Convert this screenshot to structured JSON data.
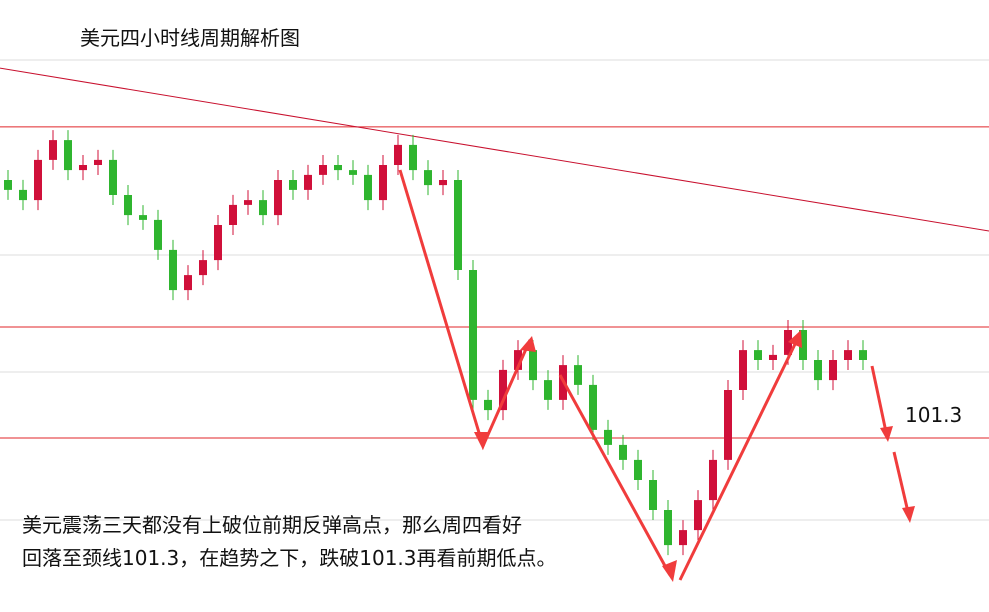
{
  "chart_data": {
    "type": "candlestick",
    "title": "美元四小时线周期解析图",
    "annotation_lines": [
      "美元震荡三天都没有上破位前期反弹高点，那么周四看好",
      "回落至颈线101.3，在趋势之下，跌破101.3再看前期低点。"
    ],
    "ylim": [
      100.72,
      102.76
    ],
    "open": 102.16,
    "close": [
      102.127,
      102.093,
      102.227,
      102.293,
      102.193,
      102.21,
      102.227,
      102.11,
      102.043,
      102.027,
      101.927,
      101.793,
      101.843,
      101.893,
      102.01,
      102.077,
      102.093,
      102.043,
      102.16,
      102.127,
      102.177,
      102.21,
      102.193,
      102.177,
      102.093,
      102.21,
      102.277,
      102.193,
      102.143,
      102.16,
      101.86,
      101.427,
      101.393,
      101.527,
      101.593,
      101.493,
      101.427,
      101.543,
      101.477,
      101.327,
      101.277,
      101.227,
      101.16,
      101.06,
      100.943,
      100.993,
      101.093,
      101.227,
      101.46,
      101.593,
      101.56,
      101.577,
      101.66,
      101.56,
      101.493,
      101.56,
      101.593,
      101.56
    ],
    "up_color": "#d0103a",
    "down_color": "#2fb52f",
    "levels": [
      102.337,
      101.67,
      101.3
    ],
    "level_color": "#e0262a",
    "trend_line": [
      102.533,
      101.99
    ],
    "trend_color": "#c8102e"
  }
}
